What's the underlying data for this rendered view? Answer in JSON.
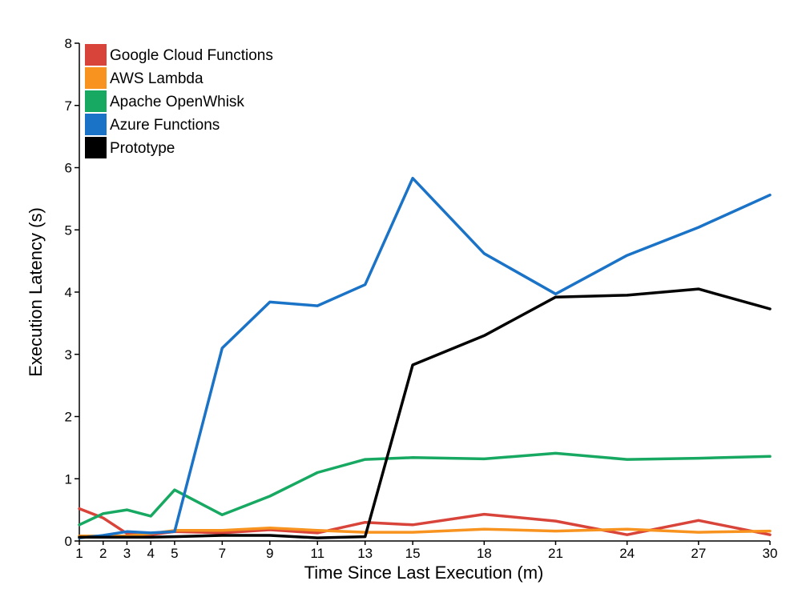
{
  "chart_data": {
    "type": "line",
    "xlabel": "Time Since Last Execution (m)",
    "ylabel": "Execution Latency (s)",
    "x": [
      1,
      2,
      3,
      4,
      5,
      7,
      9,
      11,
      13,
      15,
      18,
      21,
      24,
      27,
      30
    ],
    "x_ticks": [
      1,
      2,
      3,
      4,
      5,
      7,
      9,
      11,
      13,
      15,
      18,
      21,
      24,
      27,
      30
    ],
    "xlim": [
      1,
      30
    ],
    "ylim": [
      0,
      8
    ],
    "y_ticks": [
      0,
      1,
      2,
      3,
      4,
      5,
      6,
      7,
      8
    ],
    "grid": false,
    "legend": "top-left",
    "series": [
      {
        "name": "Google Cloud Functions",
        "color": "#d9443a",
        "values": [
          0.52,
          0.37,
          0.12,
          0.1,
          0.15,
          0.13,
          0.18,
          0.13,
          0.3,
          0.26,
          0.43,
          0.32,
          0.1,
          0.33,
          0.1
        ]
      },
      {
        "name": "AWS Lambda",
        "color": "#f7931e",
        "values": [
          0.08,
          0.08,
          0.08,
          0.12,
          0.17,
          0.17,
          0.21,
          0.17,
          0.14,
          0.14,
          0.19,
          0.16,
          0.19,
          0.14,
          0.16
        ]
      },
      {
        "name": "Apache OpenWhisk",
        "color": "#17a862",
        "values": [
          0.26,
          0.44,
          0.5,
          0.4,
          0.82,
          0.42,
          0.72,
          1.1,
          1.31,
          1.34,
          1.32,
          1.41,
          1.31,
          1.33,
          1.36
        ]
      },
      {
        "name": "Azure Functions",
        "color": "#1a73c7",
        "values": [
          0.05,
          0.09,
          0.15,
          0.13,
          0.15,
          3.1,
          3.84,
          3.78,
          4.12,
          5.83,
          4.62,
          3.97,
          4.59,
          5.04,
          5.56
        ]
      },
      {
        "name": "Prototype",
        "color": "#000000",
        "values": [
          0.06,
          0.06,
          0.06,
          0.06,
          0.07,
          0.09,
          0.09,
          0.05,
          0.07,
          2.83,
          3.3,
          3.92,
          3.95,
          4.05,
          3.73
        ]
      }
    ]
  }
}
